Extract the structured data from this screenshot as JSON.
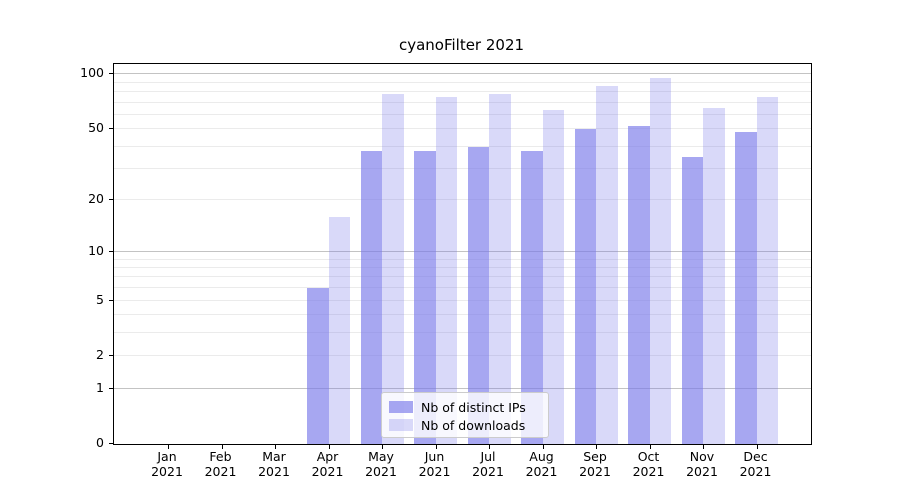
{
  "title": "cyanoFilter 2021",
  "chart_data": {
    "type": "bar",
    "title": "cyanoFilter 2021",
    "categories": [
      "Jan 2021",
      "Feb 2021",
      "Mar 2021",
      "Apr 2021",
      "May 2021",
      "Jun 2021",
      "Jul 2021",
      "Aug 2021",
      "Sep 2021",
      "Oct 2021",
      "Nov 2021",
      "Dec 2021"
    ],
    "series": [
      {
        "name": "Nb of distinct IPs",
        "color": "rgba(120,120,234,0.65)",
        "values": [
          0,
          0,
          0,
          6,
          38,
          38,
          40,
          38,
          50,
          52,
          35,
          48
        ]
      },
      {
        "name": "Nb of downloads",
        "color": "rgba(120,120,234,0.28)",
        "values": [
          0,
          0,
          0,
          16,
          78,
          75,
          78,
          64,
          86,
          95,
          65,
          75
        ]
      }
    ],
    "xlabel": "",
    "ylabel": "",
    "y_scale": "log1p",
    "y_ticks": [
      "0",
      "1",
      "2",
      "5",
      "10",
      "20",
      "50",
      "100"
    ],
    "y_tick_values": [
      0,
      1,
      2,
      5,
      10,
      20,
      50,
      100
    ],
    "y_major_gridlines": [
      1,
      10,
      100
    ],
    "y_minor_gridlines": [
      2,
      3,
      4,
      5,
      6,
      7,
      8,
      9,
      20,
      30,
      40,
      50,
      60,
      70,
      80,
      90
    ],
    "ylim": [
      0,
      114
    ],
    "grid": true,
    "legend_position": "inside-bottom-center",
    "colors": {
      "bar_base": "#7878ea",
      "major_grid": "#c3c3c3",
      "minor_grid": "#ebebeb",
      "axis": "#000000",
      "legend_border": "#cccccc"
    }
  }
}
